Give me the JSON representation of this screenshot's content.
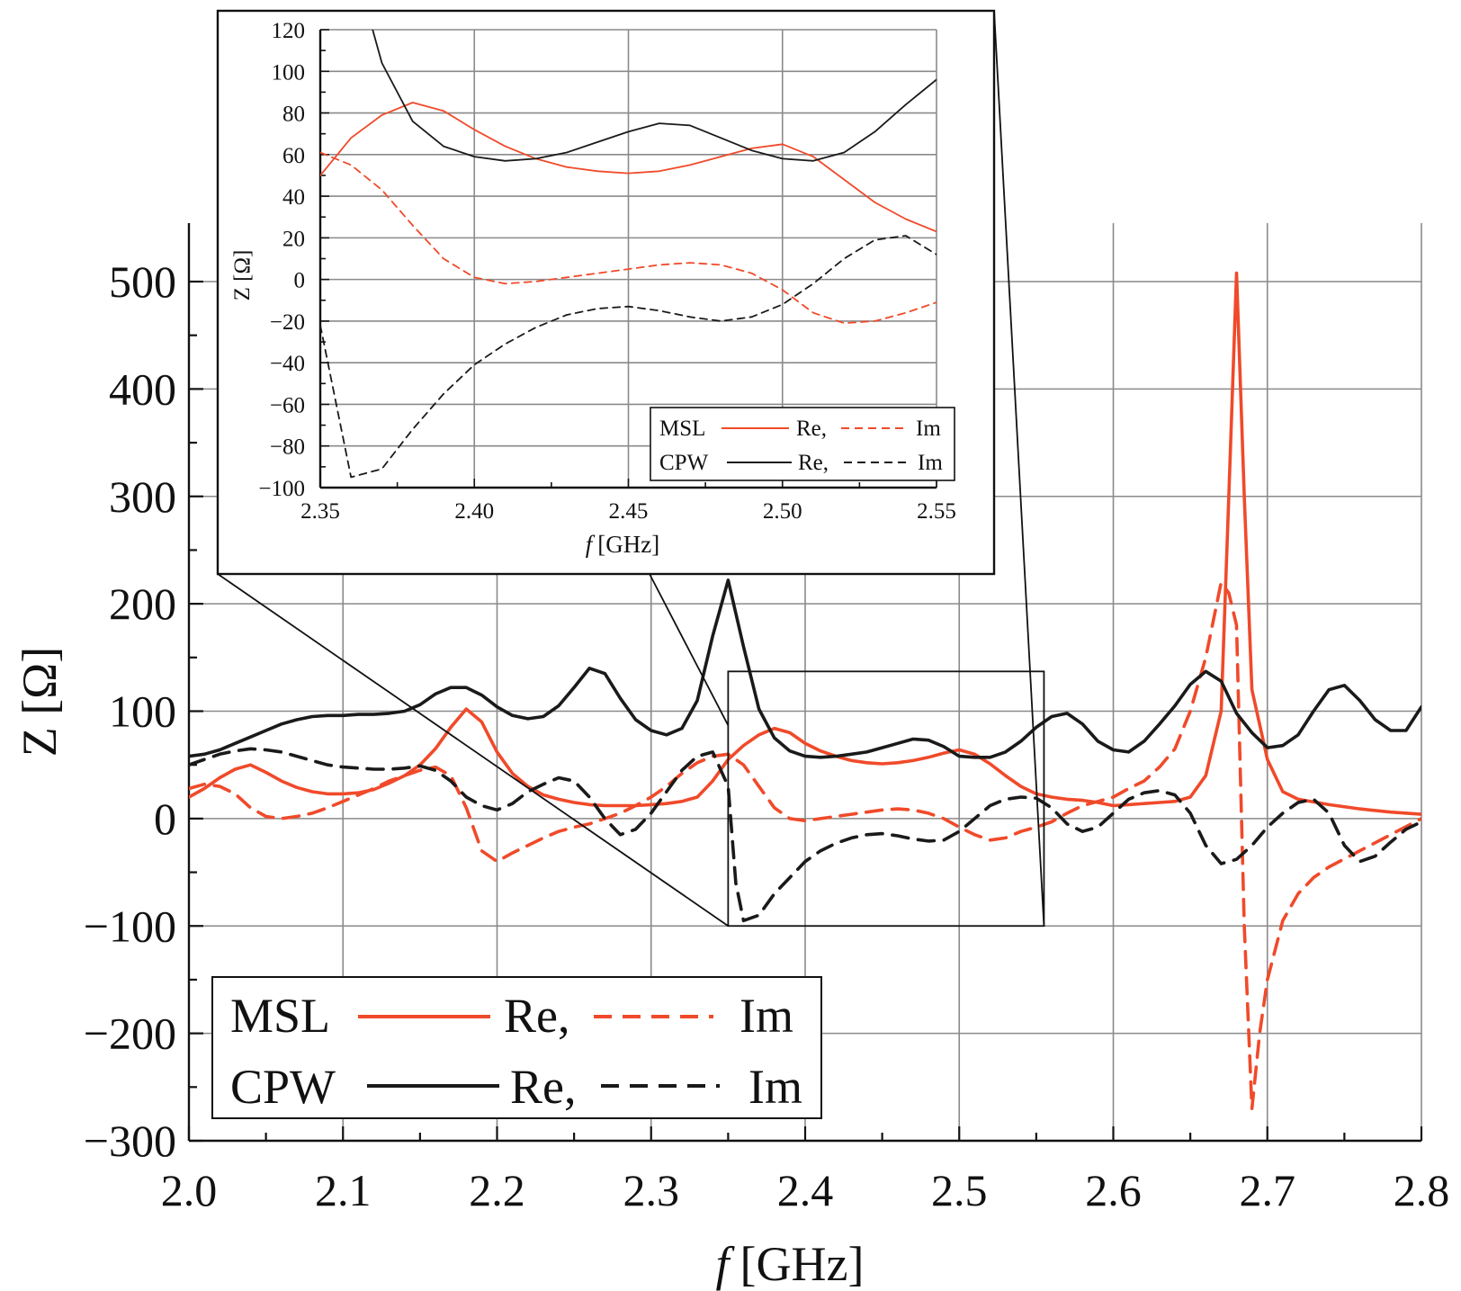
{
  "colors": {
    "msl": "#f04a2a",
    "cpw": "#1a1a1a",
    "grid": "#8a8a8a",
    "axis": "#111111"
  },
  "chart_data": [
    {
      "name": "main",
      "type": "line",
      "xlabel_italic": "f",
      "xlabel_unit": "[GHz]",
      "ylabel": "Z [Ω]",
      "xlim": [
        2.0,
        2.8
      ],
      "ylim": [
        -300,
        550
      ],
      "xticks": [
        2.0,
        2.1,
        2.2,
        2.3,
        2.4,
        2.5,
        2.6,
        2.7,
        2.8
      ],
      "xtick_labels": [
        "2.0",
        "2.1",
        "2.2",
        "2.3",
        "2.4",
        "2.5",
        "2.6",
        "2.7",
        "2.8"
      ],
      "yticks": [
        -300,
        -200,
        -100,
        0,
        100,
        200,
        300,
        400,
        500
      ],
      "ytick_labels": [
        "−300",
        "−200",
        "−100",
        "0",
        "100",
        "200",
        "300",
        "400",
        "500"
      ],
      "grid": true,
      "legend": {
        "placement": "bottom-left",
        "rows": [
          {
            "name": "MSL",
            "re": "Re,",
            "im": "Im"
          },
          {
            "name": "CPW",
            "re": "Re,",
            "im": "Im"
          }
        ]
      },
      "zoom_box": {
        "x": [
          2.35,
          2.555
        ],
        "y": [
          -100,
          137
        ]
      },
      "series": [
        {
          "name": "MSL Re",
          "color": "msl",
          "dash": "solid",
          "x": [
            2.0,
            2.01,
            2.02,
            2.03,
            2.04,
            2.05,
            2.06,
            2.07,
            2.08,
            2.09,
            2.1,
            2.11,
            2.12,
            2.13,
            2.14,
            2.15,
            2.16,
            2.17,
            2.18,
            2.19,
            2.2,
            2.21,
            2.22,
            2.23,
            2.24,
            2.25,
            2.26,
            2.27,
            2.28,
            2.29,
            2.3,
            2.31,
            2.32,
            2.33,
            2.34,
            2.35,
            2.36,
            2.37,
            2.38,
            2.39,
            2.4,
            2.41,
            2.42,
            2.43,
            2.44,
            2.45,
            2.46,
            2.47,
            2.48,
            2.49,
            2.5,
            2.51,
            2.52,
            2.53,
            2.54,
            2.55,
            2.56,
            2.57,
            2.58,
            2.59,
            2.6,
            2.61,
            2.62,
            2.63,
            2.64,
            2.65,
            2.66,
            2.67,
            2.675,
            2.68,
            2.685,
            2.69,
            2.7,
            2.71,
            2.72,
            2.74,
            2.76,
            2.78,
            2.8
          ],
          "y": [
            20,
            28,
            38,
            46,
            50,
            43,
            35,
            29,
            25,
            23,
            23,
            24,
            27,
            33,
            40,
            50,
            65,
            85,
            102,
            90,
            62,
            42,
            30,
            22,
            18,
            15,
            13,
            12,
            12,
            12,
            13,
            14,
            16,
            20,
            35,
            55,
            68,
            78,
            84,
            80,
            70,
            63,
            58,
            54,
            52,
            51,
            52,
            54,
            57,
            61,
            64,
            60,
            51,
            40,
            30,
            23,
            20,
            18,
            17,
            15,
            12,
            13,
            14,
            15,
            16,
            20,
            40,
            100,
            300,
            508,
            300,
            120,
            55,
            25,
            18,
            13,
            9,
            6,
            4
          ]
        },
        {
          "name": "MSL Im",
          "color": "msl",
          "dash": "dashed",
          "x": [
            2.0,
            2.01,
            2.02,
            2.03,
            2.04,
            2.05,
            2.06,
            2.07,
            2.08,
            2.09,
            2.1,
            2.11,
            2.12,
            2.13,
            2.14,
            2.15,
            2.16,
            2.17,
            2.18,
            2.19,
            2.2,
            2.21,
            2.22,
            2.23,
            2.24,
            2.25,
            2.26,
            2.27,
            2.28,
            2.29,
            2.3,
            2.31,
            2.32,
            2.33,
            2.34,
            2.35,
            2.36,
            2.37,
            2.38,
            2.39,
            2.4,
            2.41,
            2.42,
            2.43,
            2.44,
            2.45,
            2.46,
            2.47,
            2.48,
            2.49,
            2.5,
            2.51,
            2.52,
            2.53,
            2.54,
            2.55,
            2.56,
            2.57,
            2.58,
            2.59,
            2.6,
            2.61,
            2.62,
            2.63,
            2.64,
            2.65,
            2.66,
            2.67,
            2.675,
            2.68,
            2.685,
            2.69,
            2.695,
            2.7,
            2.71,
            2.72,
            2.73,
            2.74,
            2.76,
            2.78,
            2.8
          ],
          "y": [
            28,
            32,
            30,
            23,
            10,
            2,
            0,
            2,
            5,
            10,
            16,
            22,
            28,
            35,
            40,
            45,
            48,
            40,
            10,
            -30,
            -40,
            -32,
            -25,
            -18,
            -12,
            -8,
            -5,
            0,
            5,
            12,
            20,
            30,
            42,
            52,
            58,
            60,
            50,
            30,
            10,
            0,
            -2,
            0,
            2,
            4,
            6,
            8,
            9,
            8,
            5,
            0,
            -8,
            -15,
            -20,
            -18,
            -12,
            -8,
            -3,
            5,
            12,
            16,
            20,
            28,
            35,
            48,
            65,
            100,
            150,
            220,
            210,
            180,
            -100,
            -270,
            -200,
            -150,
            -95,
            -70,
            -55,
            -45,
            -30,
            -15,
            0
          ]
        },
        {
          "name": "CPW Re",
          "color": "cpw",
          "dash": "solid",
          "x": [
            2.0,
            2.01,
            2.02,
            2.03,
            2.04,
            2.05,
            2.06,
            2.07,
            2.08,
            2.09,
            2.1,
            2.11,
            2.12,
            2.13,
            2.14,
            2.15,
            2.16,
            2.17,
            2.18,
            2.19,
            2.2,
            2.21,
            2.22,
            2.23,
            2.24,
            2.25,
            2.26,
            2.27,
            2.28,
            2.29,
            2.3,
            2.31,
            2.32,
            2.33,
            2.34,
            2.35,
            2.36,
            2.37,
            2.38,
            2.39,
            2.4,
            2.41,
            2.42,
            2.43,
            2.44,
            2.45,
            2.46,
            2.47,
            2.48,
            2.49,
            2.5,
            2.51,
            2.52,
            2.53,
            2.54,
            2.55,
            2.56,
            2.57,
            2.58,
            2.59,
            2.6,
            2.61,
            2.62,
            2.63,
            2.64,
            2.65,
            2.66,
            2.67,
            2.68,
            2.69,
            2.7,
            2.71,
            2.72,
            2.73,
            2.74,
            2.75,
            2.76,
            2.77,
            2.78,
            2.79,
            2.8
          ],
          "y": [
            58,
            60,
            64,
            70,
            76,
            82,
            88,
            92,
            95,
            96,
            96,
            97,
            97,
            98,
            100,
            106,
            116,
            122,
            122,
            115,
            104,
            96,
            93,
            95,
            105,
            122,
            140,
            135,
            112,
            92,
            82,
            78,
            84,
            110,
            170,
            222,
            160,
            102,
            75,
            63,
            58,
            57,
            58,
            60,
            62,
            66,
            70,
            74,
            73,
            67,
            58,
            57,
            57,
            62,
            72,
            85,
            95,
            98,
            88,
            72,
            64,
            62,
            72,
            88,
            105,
            125,
            137,
            128,
            98,
            80,
            66,
            68,
            78,
            100,
            120,
            124,
            110,
            92,
            82,
            82,
            104
          ]
        },
        {
          "name": "CPW Im",
          "color": "cpw",
          "dash": "dashed",
          "x": [
            2.0,
            2.01,
            2.02,
            2.03,
            2.04,
            2.05,
            2.06,
            2.07,
            2.08,
            2.09,
            2.1,
            2.11,
            2.12,
            2.13,
            2.14,
            2.15,
            2.16,
            2.17,
            2.18,
            2.19,
            2.2,
            2.21,
            2.22,
            2.23,
            2.24,
            2.25,
            2.26,
            2.27,
            2.28,
            2.29,
            2.3,
            2.31,
            2.32,
            2.33,
            2.34,
            2.35,
            2.355,
            2.36,
            2.37,
            2.38,
            2.39,
            2.4,
            2.41,
            2.42,
            2.43,
            2.44,
            2.45,
            2.46,
            2.47,
            2.48,
            2.49,
            2.5,
            2.51,
            2.52,
            2.53,
            2.54,
            2.55,
            2.56,
            2.57,
            2.58,
            2.59,
            2.6,
            2.61,
            2.62,
            2.63,
            2.64,
            2.65,
            2.66,
            2.67,
            2.68,
            2.69,
            2.7,
            2.71,
            2.72,
            2.73,
            2.74,
            2.75,
            2.76,
            2.77,
            2.78,
            2.79,
            2.8
          ],
          "y": [
            50,
            55,
            60,
            63,
            65,
            64,
            62,
            58,
            54,
            50,
            48,
            47,
            46,
            46,
            47,
            49,
            45,
            35,
            20,
            12,
            8,
            14,
            25,
            32,
            38,
            35,
            20,
            0,
            -15,
            -10,
            5,
            25,
            45,
            58,
            62,
            30,
            -60,
            -95,
            -90,
            -70,
            -55,
            -40,
            -30,
            -23,
            -18,
            -15,
            -14,
            -16,
            -19,
            -21,
            -20,
            -12,
            0,
            12,
            18,
            20,
            19,
            10,
            -5,
            -12,
            -8,
            5,
            18,
            24,
            26,
            22,
            5,
            -25,
            -42,
            -38,
            -25,
            -8,
            5,
            15,
            18,
            5,
            -25,
            -40,
            -35,
            -22,
            -10,
            -3
          ]
        }
      ]
    },
    {
      "name": "inset",
      "type": "line",
      "xlabel_italic": "f",
      "xlabel_unit": "[GHz]",
      "ylabel": "Z [Ω]",
      "xlim": [
        2.35,
        2.55
      ],
      "ylim": [
        -100,
        120
      ],
      "xticks": [
        2.35,
        2.4,
        2.45,
        2.5,
        2.55
      ],
      "xtick_labels": [
        "2.35",
        "2.40",
        "2.45",
        "2.50",
        "2.55"
      ],
      "yticks": [
        -100,
        -80,
        -60,
        -40,
        -20,
        0,
        20,
        40,
        60,
        80,
        100,
        120
      ],
      "ytick_labels": [
        "−100",
        "−80",
        "−60",
        "−40",
        "−20",
        "0",
        "20",
        "40",
        "60",
        "80",
        "100",
        "120"
      ],
      "grid": true,
      "legend": {
        "placement": "bottom-right",
        "rows": [
          {
            "name": "MSL",
            "re": "Re,",
            "im": "Im"
          },
          {
            "name": "CPW",
            "re": "Re,",
            "im": "Im"
          }
        ]
      },
      "series": [
        {
          "name": "MSL Re",
          "color": "msl",
          "dash": "solid",
          "x": [
            2.35,
            2.36,
            2.37,
            2.38,
            2.39,
            2.4,
            2.41,
            2.42,
            2.43,
            2.44,
            2.45,
            2.46,
            2.47,
            2.48,
            2.49,
            2.5,
            2.51,
            2.52,
            2.53,
            2.54,
            2.55
          ],
          "y": [
            50,
            68,
            79,
            85,
            81,
            72,
            64,
            58,
            54,
            52,
            51,
            52,
            55,
            59,
            63,
            65,
            59,
            48,
            37,
            29,
            23
          ]
        },
        {
          "name": "MSL Im",
          "color": "msl",
          "dash": "dashed",
          "x": [
            2.35,
            2.36,
            2.37,
            2.38,
            2.39,
            2.4,
            2.41,
            2.42,
            2.43,
            2.44,
            2.45,
            2.46,
            2.47,
            2.48,
            2.49,
            2.5,
            2.51,
            2.52,
            2.53,
            2.54,
            2.55
          ],
          "y": [
            61,
            55,
            43,
            26,
            10,
            1,
            -2,
            -1,
            1,
            3,
            5,
            7,
            8,
            7,
            3,
            -5,
            -16,
            -21,
            -20,
            -16,
            -11
          ]
        },
        {
          "name": "CPW Re",
          "color": "cpw",
          "dash": "solid",
          "x": [
            2.367,
            2.37,
            2.38,
            2.39,
            2.4,
            2.41,
            2.42,
            2.43,
            2.44,
            2.45,
            2.46,
            2.47,
            2.48,
            2.49,
            2.5,
            2.51,
            2.52,
            2.53,
            2.54,
            2.55
          ],
          "y": [
            120,
            104,
            76,
            64,
            59,
            57,
            58,
            61,
            66,
            71,
            75,
            74,
            68,
            62,
            58,
            57,
            61,
            71,
            84,
            96
          ]
        },
        {
          "name": "CPW Im",
          "color": "cpw",
          "dash": "dashed",
          "x": [
            2.35,
            2.36,
            2.37,
            2.38,
            2.39,
            2.4,
            2.41,
            2.42,
            2.43,
            2.44,
            2.45,
            2.46,
            2.47,
            2.48,
            2.49,
            2.5,
            2.51,
            2.52,
            2.53,
            2.54,
            2.55
          ],
          "y": [
            -22,
            -95,
            -91,
            -72,
            -55,
            -41,
            -31,
            -23,
            -17,
            -14,
            -13,
            -15,
            -18,
            -20,
            -18,
            -12,
            -2,
            10,
            19,
            21,
            12
          ]
        }
      ]
    }
  ]
}
